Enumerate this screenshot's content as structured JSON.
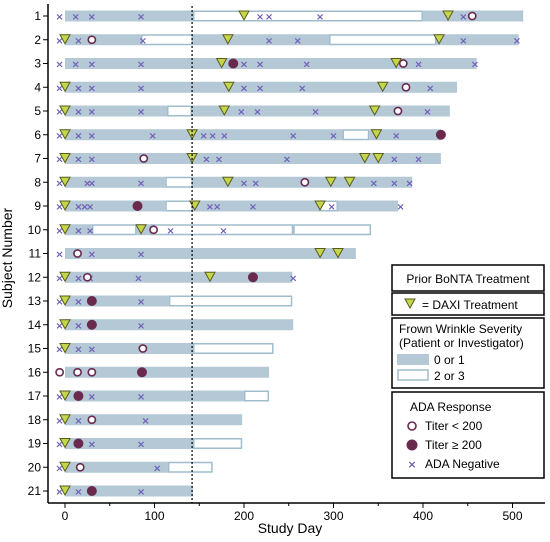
{
  "chart_data": {
    "type": "swimlane",
    "xlabel": "Study Day",
    "ylabel": "Subject Number",
    "xlim": [
      -8,
      540
    ],
    "x_ticks": [
      0,
      100,
      200,
      300,
      400,
      500
    ],
    "reference_line_day": 142,
    "colors": {
      "low_severity": "#b4c8d6",
      "high_severity_border": "#9fbdcc",
      "prior_bonta_label": "#b04a3a",
      "daxi_fill": "#c4d64a",
      "titer_color": "#6a2a4e",
      "negative_color": "#6f5fb8"
    },
    "subjects": [
      {
        "label": "1",
        "prior_bonta": false,
        "segments": [
          {
            "start": 0,
            "end": 143,
            "severity": "0 or 1"
          },
          {
            "start": 143,
            "end": 400,
            "severity": "2 or 3"
          },
          {
            "start": 400,
            "end": 512,
            "severity": "0 or 1"
          }
        ],
        "daxi": [
          200,
          428
        ],
        "titer_low": [
          455
        ],
        "titer_high": [],
        "negative": [
          -6,
          12,
          30,
          85,
          218,
          228,
          285,
          445
        ]
      },
      {
        "label": "2",
        "prior_bonta": false,
        "segments": [
          {
            "start": 0,
            "end": 85,
            "severity": "0 or 1"
          },
          {
            "start": 85,
            "end": 143,
            "severity": "2 or 3"
          },
          {
            "start": 143,
            "end": 295,
            "severity": "0 or 1"
          },
          {
            "start": 295,
            "end": 415,
            "severity": "2 or 3"
          },
          {
            "start": 415,
            "end": 507,
            "severity": "0 or 1"
          }
        ],
        "daxi": [
          0,
          182,
          418
        ],
        "titer_low": [
          30
        ],
        "titer_high": [],
        "negative": [
          -6,
          15,
          87,
          228,
          260,
          445,
          505
        ]
      },
      {
        "label": "3",
        "prior_bonta": true,
        "segments": [
          {
            "start": 0,
            "end": 460,
            "severity": "0 or 1"
          }
        ],
        "daxi": [
          175,
          370
        ],
        "titer_low": [
          378
        ],
        "titer_high": [
          188
        ],
        "negative": [
          -6,
          12,
          30,
          85,
          200,
          218,
          270,
          395,
          458
        ]
      },
      {
        "label": "4",
        "prior_bonta": false,
        "segments": [
          {
            "start": 0,
            "end": 438,
            "severity": "0 or 1"
          }
        ],
        "daxi": [
          0,
          183,
          355
        ],
        "titer_low": [
          381
        ],
        "titer_high": [],
        "negative": [
          -6,
          15,
          30,
          85,
          200,
          218,
          265,
          408
        ]
      },
      {
        "label": "5",
        "prior_bonta": true,
        "segments": [
          {
            "start": 0,
            "end": 114,
            "severity": "0 or 1"
          },
          {
            "start": 114,
            "end": 142,
            "severity": "2 or 3"
          },
          {
            "start": 142,
            "end": 430,
            "severity": "0 or 1"
          }
        ],
        "daxi": [
          0,
          178,
          346
        ],
        "titer_low": [
          372
        ],
        "titer_high": [],
        "negative": [
          -6,
          15,
          30,
          85,
          197,
          215,
          280,
          405
        ]
      },
      {
        "label": "6",
        "prior_bonta": true,
        "segments": [
          {
            "start": 0,
            "end": 310,
            "severity": "0 or 1"
          },
          {
            "start": 310,
            "end": 340,
            "severity": "2 or 3"
          },
          {
            "start": 340,
            "end": 420,
            "severity": "0 or 1"
          }
        ],
        "daxi": [
          0,
          142,
          348
        ],
        "titer_low": [],
        "titer_high": [
          420
        ],
        "negative": [
          -6,
          15,
          30,
          98,
          155,
          165,
          178,
          255,
          300,
          370
        ]
      },
      {
        "label": "7",
        "prior_bonta": true,
        "segments": [
          {
            "start": 0,
            "end": 420,
            "severity": "0 or 1"
          }
        ],
        "daxi": [
          0,
          142,
          335,
          350
        ],
        "titer_low": [
          88
        ],
        "titer_high": [],
        "negative": [
          -6,
          15,
          30,
          158,
          172,
          248,
          368,
          395
        ]
      },
      {
        "label": "8",
        "prior_bonta": false,
        "segments": [
          {
            "start": 0,
            "end": 112,
            "severity": "0 or 1"
          },
          {
            "start": 112,
            "end": 143,
            "severity": "2 or 3"
          },
          {
            "start": 143,
            "end": 388,
            "severity": "0 or 1"
          }
        ],
        "daxi": [
          0,
          182,
          297,
          318
        ],
        "titer_low": [
          268
        ],
        "titer_high": [],
        "negative": [
          -6,
          25,
          30,
          85,
          200,
          213,
          345,
          368,
          385
        ]
      },
      {
        "label": "9",
        "prior_bonta": true,
        "segments": [
          {
            "start": 0,
            "end": 112,
            "severity": "0 or 1"
          },
          {
            "start": 112,
            "end": 143,
            "severity": "2 or 3"
          },
          {
            "start": 143,
            "end": 283,
            "severity": "0 or 1"
          },
          {
            "start": 283,
            "end": 305,
            "severity": "2 or 3"
          },
          {
            "start": 305,
            "end": 372,
            "severity": "0 or 1"
          }
        ],
        "daxi": [
          0,
          145,
          285
        ],
        "titer_low": [],
        "titer_high": [
          81
        ],
        "negative": [
          -6,
          15,
          22,
          28,
          162,
          170,
          210,
          298,
          375
        ]
      },
      {
        "label": "10",
        "prior_bonta": true,
        "segments": [
          {
            "start": 0,
            "end": 30,
            "severity": "0 or 1"
          },
          {
            "start": 30,
            "end": 80,
            "severity": "2 or 3"
          },
          {
            "start": 80,
            "end": 95,
            "severity": "0 or 1"
          },
          {
            "start": 95,
            "end": 255,
            "severity": "2 or 3"
          },
          {
            "start": 255,
            "end": 342,
            "severity": "2 or 3"
          }
        ],
        "daxi": [
          0,
          85
        ],
        "titer_low": [
          99
        ],
        "titer_high": [],
        "negative": [
          -6,
          15,
          28,
          118,
          177
        ]
      },
      {
        "label": "11",
        "prior_bonta": true,
        "segments": [
          {
            "start": 0,
            "end": 325,
            "severity": "0 or 1"
          }
        ],
        "daxi": [
          285,
          305
        ],
        "titer_low": [
          14
        ],
        "titer_high": [],
        "negative": [
          -6,
          30,
          85
        ]
      },
      {
        "label": "12",
        "prior_bonta": false,
        "segments": [
          {
            "start": 0,
            "end": 254,
            "severity": "0 or 1"
          }
        ],
        "daxi": [
          0,
          162
        ],
        "titer_low": [
          25
        ],
        "titer_high": [
          210
        ],
        "negative": [
          -6,
          15,
          28,
          82,
          255
        ]
      },
      {
        "label": "13",
        "prior_bonta": false,
        "segments": [
          {
            "start": 0,
            "end": 116,
            "severity": "0 or 1"
          },
          {
            "start": 116,
            "end": 254,
            "severity": "2 or 3"
          }
        ],
        "daxi": [
          0
        ],
        "titer_low": [],
        "titer_high": [
          30
        ],
        "negative": [
          -6,
          15,
          85
        ]
      },
      {
        "label": "14",
        "prior_bonta": false,
        "segments": [
          {
            "start": 0,
            "end": 255,
            "severity": "0 or 1"
          }
        ],
        "daxi": [
          0
        ],
        "titer_low": [],
        "titer_high": [
          30
        ],
        "negative": [
          -6,
          15,
          85
        ]
      },
      {
        "label": "15",
        "prior_bonta": false,
        "segments": [
          {
            "start": 0,
            "end": 143,
            "severity": "0 or 1"
          },
          {
            "start": 143,
            "end": 233,
            "severity": "2 or 3"
          }
        ],
        "daxi": [
          0
        ],
        "titer_low": [
          87
        ],
        "titer_high": [],
        "negative": [
          -6,
          15,
          30
        ]
      },
      {
        "label": "16",
        "prior_bonta": false,
        "segments": [
          {
            "start": 0,
            "end": 228,
            "severity": "0 or 1"
          }
        ],
        "daxi": [],
        "titer_low": [
          -6,
          14,
          30
        ],
        "titer_high": [
          86
        ],
        "negative": []
      },
      {
        "label": "17",
        "prior_bonta": true,
        "segments": [
          {
            "start": 0,
            "end": 200,
            "severity": "0 or 1"
          },
          {
            "start": 200,
            "end": 228,
            "severity": "2 or 3"
          }
        ],
        "daxi": [
          0
        ],
        "titer_low": [],
        "titer_high": [
          15
        ],
        "negative": [
          -6,
          30,
          85
        ]
      },
      {
        "label": "18",
        "prior_bonta": false,
        "segments": [
          {
            "start": 0,
            "end": 198,
            "severity": "0 or 1"
          }
        ],
        "daxi": [
          0
        ],
        "titer_low": [
          30
        ],
        "titer_high": [],
        "negative": [
          -6,
          15,
          90
        ]
      },
      {
        "label": "19",
        "prior_bonta": false,
        "segments": [
          {
            "start": 0,
            "end": 143,
            "severity": "0 or 1"
          },
          {
            "start": 143,
            "end": 198,
            "severity": "2 or 3"
          }
        ],
        "daxi": [
          0
        ],
        "titer_low": [],
        "titer_high": [
          15
        ],
        "negative": [
          -6,
          30,
          85
        ]
      },
      {
        "label": "20",
        "prior_bonta": false,
        "segments": [
          {
            "start": 0,
            "end": 115,
            "severity": "0 or 1"
          },
          {
            "start": 115,
            "end": 165,
            "severity": "2 or 3"
          }
        ],
        "daxi": [
          0
        ],
        "titer_low": [
          17
        ],
        "titer_high": [],
        "negative": [
          -6,
          103
        ]
      },
      {
        "label": "21",
        "prior_bonta": false,
        "segments": [
          {
            "start": 0,
            "end": 143,
            "severity": "0 or 1"
          }
        ],
        "daxi": [
          0
        ],
        "titer_low": [],
        "titer_high": [
          30
        ],
        "negative": [
          -6,
          15,
          85
        ]
      }
    ],
    "legend": {
      "prior_bonta": "Prior BoNTA Treatment",
      "daxi": "= DAXI Treatment",
      "severity_title_1": "Frown Wrinkle Severity",
      "severity_title_2": "(Patient or Investigator)",
      "severity_low": "0 or 1",
      "severity_high": "2 or 3",
      "ada_title": "ADA Response",
      "titer_low": "Titer < 200",
      "titer_high": "Titer ≥ 200",
      "negative": "ADA Negative"
    }
  }
}
